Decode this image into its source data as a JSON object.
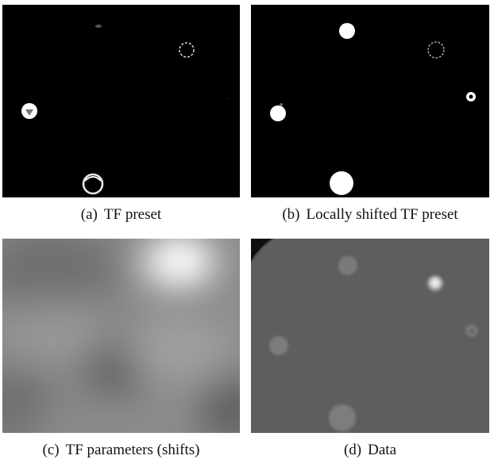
{
  "figure": {
    "panels": [
      {
        "tag": "(a)",
        "caption": "TF preset"
      },
      {
        "tag": "(b)",
        "caption": "Locally shifted TF preset"
      },
      {
        "tag": "(c)",
        "caption": "TF parameters (shifts)"
      },
      {
        "tag": "(d)",
        "caption": "Data"
      }
    ]
  },
  "colors": {
    "background": "#000000",
    "feature": "#ffffff",
    "data_background": "#5e5e5e"
  }
}
